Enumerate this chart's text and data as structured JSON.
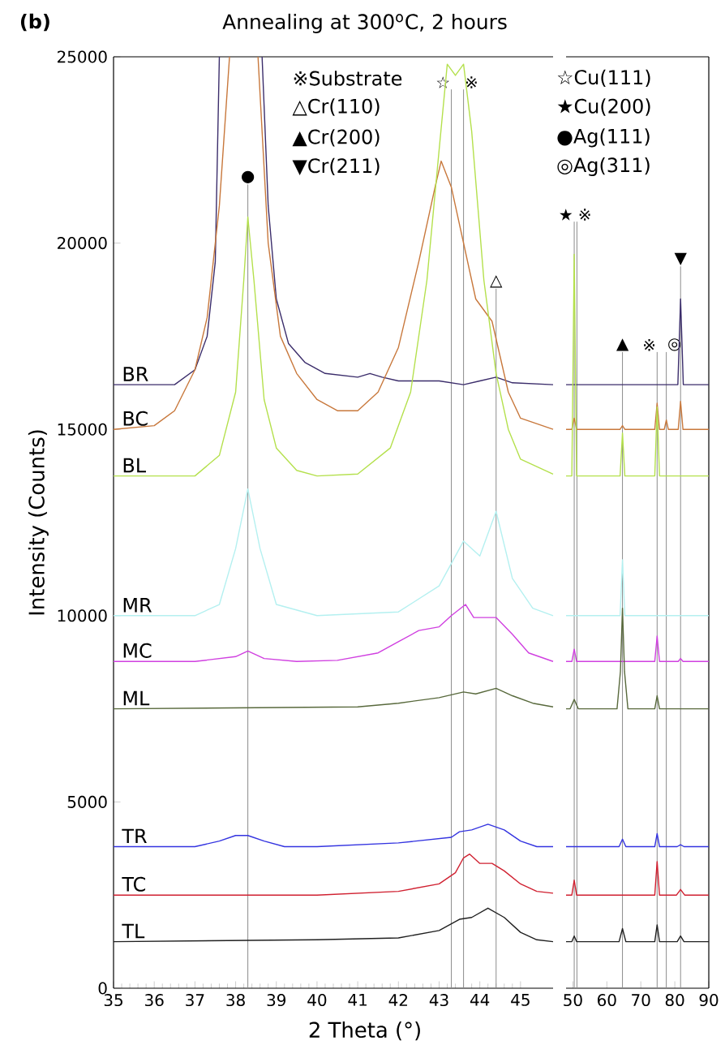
{
  "chart_data": [
    {
      "type": "line",
      "title": "Annealing at 300$^{o}$C, 2 hours",
      "xlabel": "2 Theta (°)",
      "ylabel": "Intensity (Counts)",
      "xlim": [
        35,
        45.8
      ],
      "xticks": [
        35,
        36,
        37,
        38,
        39,
        40,
        41,
        42,
        43,
        44,
        45
      ],
      "ylim": [
        0,
        25000
      ],
      "yticks": [
        0,
        5000,
        10000,
        15000,
        20000,
        25000
      ],
      "annotations": [
        "(b)",
        "※Substrate",
        "△Cr(110)",
        "▲Cr(200)",
        "▼Cr(211)"
      ],
      "ref_lines": [
        {
          "axis": "x",
          "value": 38.3,
          "label": "●",
          "color": "#8c8c8c"
        },
        {
          "axis": "x",
          "value": 43.3,
          "label": "☆",
          "color": "#8c8c8c"
        },
        {
          "axis": "x",
          "value": 43.6,
          "label": "※",
          "color": "#8c8c8c"
        },
        {
          "axis": "x",
          "value": 44.4,
          "label": "△",
          "color": "#8c8c8c"
        }
      ],
      "series": [
        {
          "name": "BR",
          "color": "#3b2d6b",
          "x": [
            35,
            36.5,
            37.0,
            37.3,
            37.5,
            37.6,
            38.1,
            38.65,
            38.8,
            39.0,
            39.3,
            39.7,
            40.2,
            41.0,
            41.3,
            41.6,
            42.0,
            43.0,
            43.6,
            44.0,
            44.4,
            44.8,
            45.8
          ],
          "values": [
            16200,
            16200,
            16600,
            17500,
            19500,
            25000,
            null,
            25000,
            21000,
            18500,
            17300,
            16800,
            16500,
            16400,
            16500,
            16400,
            16300,
            16300,
            16200,
            16300,
            16400,
            16250,
            16200
          ]
        },
        {
          "name": "BC",
          "color": "#c8783c",
          "x": [
            35,
            36,
            36.5,
            37.0,
            37.3,
            37.6,
            37.85,
            38.3,
            38.55,
            38.8,
            39.1,
            39.5,
            40.0,
            40.5,
            41.0,
            41.5,
            42.0,
            42.5,
            42.9,
            43.05,
            43.3,
            43.6,
            43.9,
            44.3,
            44.7,
            45.0,
            45.8
          ],
          "values": [
            15000,
            15100,
            15500,
            16600,
            18000,
            21000,
            25000,
            null,
            25000,
            20000,
            17500,
            16500,
            15800,
            15500,
            15500,
            16000,
            17200,
            19500,
            21500,
            22200,
            21500,
            20000,
            18500,
            17900,
            16000,
            15300,
            15000
          ]
        },
        {
          "name": "BL",
          "color": "#b4e04c",
          "x": [
            35,
            37.0,
            37.6,
            38.0,
            38.2,
            38.3,
            38.45,
            38.7,
            39.0,
            39.5,
            40.0,
            41.0,
            41.8,
            42.3,
            42.7,
            43.0,
            43.2,
            43.4,
            43.6,
            43.8,
            44.1,
            44.4,
            44.7,
            45.0,
            45.8
          ],
          "values": [
            13750,
            13750,
            14300,
            16000,
            19000,
            20700,
            19000,
            15800,
            14500,
            13900,
            13750,
            13800,
            14500,
            16000,
            19000,
            22500,
            24800,
            24500,
            24800,
            23000,
            19000,
            16500,
            15000,
            14200,
            13800
          ]
        },
        {
          "name": "MR",
          "color": "#b4f0f0",
          "x": [
            35,
            37.0,
            37.6,
            38.0,
            38.3,
            38.6,
            39.0,
            40.0,
            42.0,
            43.0,
            43.6,
            44.0,
            44.4,
            44.8,
            45.3,
            45.8
          ],
          "values": [
            10000,
            10000,
            10300,
            11800,
            13400,
            11800,
            10300,
            10000,
            10100,
            10800,
            12000,
            11600,
            12800,
            11000,
            10200,
            10000
          ]
        },
        {
          "name": "MC",
          "color": "#d040e0",
          "x": [
            35,
            37.0,
            38.0,
            38.3,
            38.7,
            39.5,
            40.5,
            41.5,
            42.0,
            42.5,
            43.0,
            43.3,
            43.65,
            43.85,
            44.4,
            44.8,
            45.2,
            45.8
          ],
          "values": [
            8770,
            8770,
            8900,
            9050,
            8850,
            8770,
            8800,
            9000,
            9300,
            9600,
            9700,
            10000,
            10300,
            9950,
            9950,
            9500,
            9000,
            8770
          ]
        },
        {
          "name": "ML",
          "color": "#58693c",
          "x": [
            35,
            41.0,
            42.0,
            43.0,
            43.6,
            43.9,
            44.4,
            44.8,
            45.3,
            45.8
          ],
          "values": [
            7500,
            7550,
            7650,
            7800,
            7950,
            7900,
            8050,
            7850,
            7650,
            7550
          ]
        },
        {
          "name": "TR",
          "color": "#3434e0",
          "x": [
            35,
            37.0,
            37.6,
            38.0,
            38.3,
            38.7,
            39.2,
            40.0,
            42.0,
            43.3,
            43.5,
            43.8,
            44.2,
            44.6,
            45.0,
            45.4,
            45.8
          ],
          "values": [
            3800,
            3800,
            3950,
            4100,
            4100,
            3950,
            3800,
            3800,
            3900,
            4050,
            4200,
            4250,
            4400,
            4250,
            3950,
            3800,
            3800
          ]
        },
        {
          "name": "TC",
          "color": "#d02030",
          "x": [
            35,
            40.0,
            42.0,
            43.0,
            43.4,
            43.6,
            43.75,
            44.0,
            44.3,
            44.6,
            45.0,
            45.4,
            45.8
          ],
          "values": [
            2500,
            2500,
            2600,
            2800,
            3100,
            3500,
            3600,
            3350,
            3350,
            3150,
            2800,
            2600,
            2550
          ]
        },
        {
          "name": "TL",
          "color": "#202020",
          "x": [
            35,
            40.0,
            42.0,
            43.0,
            43.5,
            43.8,
            44.2,
            44.6,
            45.0,
            45.4,
            45.8
          ],
          "values": [
            1250,
            1300,
            1350,
            1550,
            1850,
            1900,
            2150,
            1900,
            1500,
            1300,
            1250
          ]
        }
      ]
    },
    {
      "type": "line",
      "xlim": [
        48,
        90
      ],
      "xticks": [
        50,
        60,
        70,
        80,
        90
      ],
      "ylim": [
        0,
        25000
      ],
      "tick_labels": "x",
      "annotations": [
        "☆Cu(111)",
        "★Cu(200)",
        "●Ag(111)",
        "◎Ag(311)"
      ],
      "ref_lines": [
        {
          "axis": "x",
          "value": 50.4,
          "label": "★",
          "color": "#8c8c8c"
        },
        {
          "axis": "x",
          "value": 51.2,
          "label": "※",
          "color": "#8c8c8c"
        },
        {
          "axis": "x",
          "value": 64.6,
          "label": "▲",
          "color": "#8c8c8c"
        },
        {
          "axis": "x",
          "value": 74.8,
          "label": "※",
          "color": "#8c8c8c"
        },
        {
          "axis": "x",
          "value": 77.5,
          "label": "◎",
          "color": "#8c8c8c"
        },
        {
          "axis": "x",
          "value": 81.7,
          "label": "▼",
          "color": "#8c8c8c"
        }
      ],
      "series": [
        {
          "color": "#3b2d6b",
          "x": [
            48,
            80.9,
            81.7,
            82.5,
            90
          ],
          "values": [
            16200,
            16200,
            18500,
            16200,
            16200
          ]
        },
        {
          "color": "#c8783c",
          "x": [
            48,
            49.7,
            50.4,
            51.1,
            63.9,
            64.6,
            65.3,
            74.1,
            74.8,
            75.5,
            76.9,
            77.5,
            78.1,
            81.0,
            81.7,
            82.4,
            90
          ],
          "values": [
            15000,
            15000,
            15300,
            15000,
            15000,
            15100,
            15000,
            15000,
            15700,
            15000,
            15000,
            15250,
            15000,
            15000,
            15750,
            15000,
            15000
          ]
        },
        {
          "color": "#b4e04c",
          "x": [
            48,
            49.7,
            50.4,
            51.1,
            63.9,
            64.6,
            65.3,
            74.1,
            74.8,
            75.5,
            90
          ],
          "values": [
            13750,
            13750,
            19700,
            13750,
            13750,
            14900,
            13750,
            13750,
            15600,
            13750,
            13750
          ]
        },
        {
          "color": "#b4f0f0",
          "x": [
            48,
            63.9,
            64.6,
            65.3,
            90
          ],
          "values": [
            10000,
            10000,
            11500,
            10000,
            10000
          ]
        },
        {
          "color": "#d040e0",
          "x": [
            48,
            49.7,
            50.4,
            51.1,
            74.1,
            74.8,
            75.5,
            81.0,
            81.7,
            82.4,
            90
          ],
          "values": [
            8770,
            8770,
            9100,
            8770,
            8770,
            9450,
            8770,
            8770,
            8850,
            8770,
            8770
          ]
        },
        {
          "color": "#58693c",
          "x": [
            48,
            49.2,
            50.4,
            51.6,
            63.0,
            64.0,
            64.6,
            65.2,
            66.2,
            74.1,
            74.8,
            75.5,
            90
          ],
          "values": [
            7500,
            7500,
            7750,
            7500,
            7500,
            8500,
            10200,
            8500,
            7500,
            7500,
            7850,
            7500,
            7500
          ]
        },
        {
          "color": "#3434e0",
          "x": [
            48,
            63.6,
            64.6,
            65.6,
            74.1,
            74.8,
            75.5,
            80.7,
            81.7,
            82.7,
            90
          ],
          "values": [
            3800,
            3800,
            4000,
            3800,
            3800,
            4150,
            3800,
            3800,
            3850,
            3800,
            3800
          ]
        },
        {
          "color": "#d02030",
          "x": [
            48,
            49.7,
            50.4,
            51.1,
            74.1,
            74.8,
            75.5,
            80.5,
            81.7,
            82.9,
            90
          ],
          "values": [
            2500,
            2500,
            2900,
            2500,
            2500,
            3400,
            2500,
            2500,
            2650,
            2500,
            2500
          ]
        },
        {
          "color": "#202020",
          "x": [
            48,
            49.7,
            50.4,
            51.1,
            63.6,
            64.6,
            65.6,
            74.1,
            74.8,
            75.5,
            80.7,
            81.7,
            82.7,
            90
          ],
          "values": [
            1250,
            1250,
            1400,
            1250,
            1250,
            1600,
            1250,
            1250,
            1700,
            1250,
            1250,
            1400,
            1250,
            1250
          ]
        }
      ]
    }
  ]
}
